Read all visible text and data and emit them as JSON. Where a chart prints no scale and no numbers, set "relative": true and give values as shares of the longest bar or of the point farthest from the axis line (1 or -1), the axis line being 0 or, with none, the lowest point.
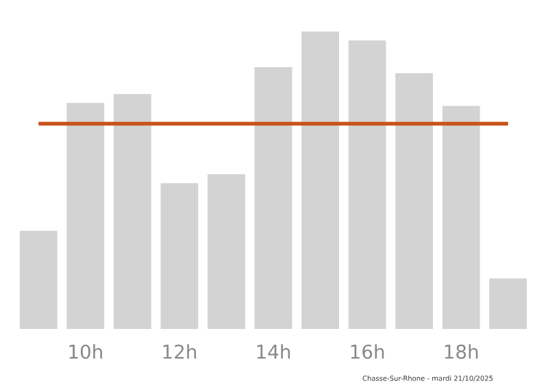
{
  "chart_data": {
    "type": "bar",
    "relative": true,
    "categories": [
      null,
      "10h",
      null,
      "12h",
      null,
      "14h",
      null,
      "16h",
      null,
      "18h",
      null
    ],
    "values": [
      0.33,
      0.76,
      0.79,
      0.49,
      0.52,
      0.88,
      1,
      0.97,
      0.86,
      0.75,
      0.17
    ],
    "color": "#d3d3d3",
    "ref_lines": [
      {
        "axis": "y",
        "value": 0.69,
        "color": "#c8541a"
      }
    ],
    "grid": false,
    "legend": false,
    "annotations": [
      "Chasse-Sur-Rhone - mardi 21/10/2025"
    ]
  }
}
